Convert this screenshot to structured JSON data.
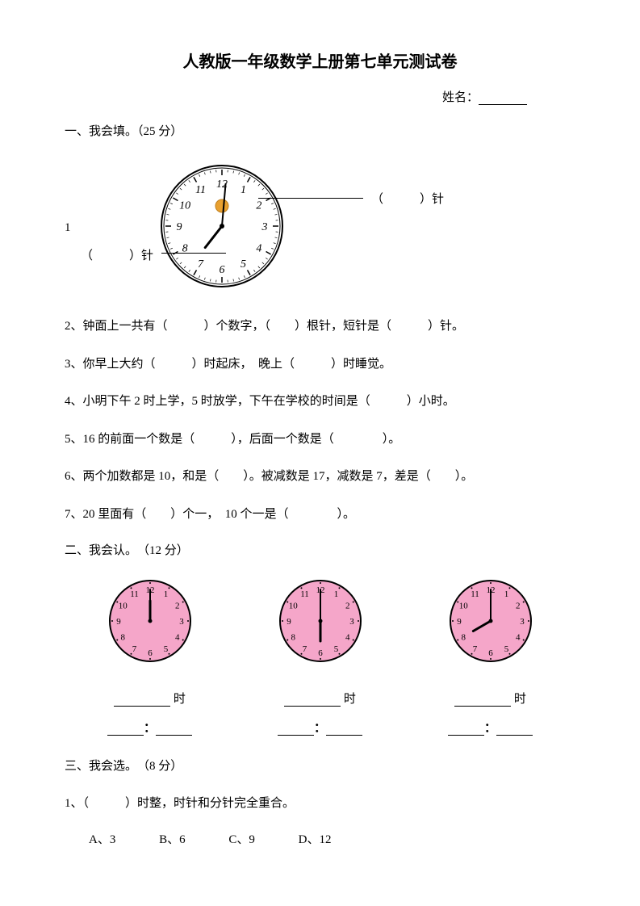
{
  "title": "人教版一年级数学上册第七单元测试卷",
  "name_label": "姓名：",
  "section1": "一、我会填。（25 分）",
  "q1_num": "1",
  "q1_needle_label": "针",
  "clock1": {
    "numbers": [
      "12",
      "1",
      "2",
      "3",
      "4",
      "5",
      "6",
      "7",
      "8",
      "9",
      "10",
      "11"
    ],
    "minute_angle": 5,
    "hour_angle": 218,
    "face_color": "#ffffff",
    "border_color": "#000000",
    "minute_color": "#000000",
    "hour_color": "#000000",
    "number_color": "#000000",
    "radius": 75,
    "logo_color": "#e8a030"
  },
  "q2": "2、钟面上一共有（　　　）个数字，（　　）根针，短针是（　　　）针。",
  "q3": "3、你早上大约（　　　）时起床，　晚上（　　　）时睡觉。",
  "q4": "4、小明下午 2 时上学，5 时放学，下午在学校的时间是（　　　）小时。",
  "q5": "5、16 的前面一个数是（　　　），后面一个数是（　　　　）。",
  "q6": "6、两个加数都是 10，和是（　　）。被减数是 17，减数是 7，差是（　　）。",
  "q7": "7、20 里面有（　　）个一，　10 个一是（　　　　）。",
  "section2": "二、我会认。　（12 分）",
  "pink_clocks": {
    "face_color": "#f5a6c9",
    "border_color": "#000000",
    "hand_color": "#000000",
    "number_color": "#000000",
    "radius": 50,
    "clocks": [
      {
        "hour": 12,
        "minute": 0,
        "hour_angle": 0
      },
      {
        "hour": 6,
        "minute": 0,
        "hour_angle": 180
      },
      {
        "hour": 8,
        "minute": 0,
        "hour_angle": 240
      }
    ]
  },
  "time_suffix": "时",
  "colon": "：",
  "section3": "三、我会选。　（8 分）",
  "q3_1": "1、（　　　）时整，时针和分针完全重合。",
  "options": {
    "a": "A、3",
    "b": "B、6",
    "c": "C、9",
    "d": "D、12"
  }
}
